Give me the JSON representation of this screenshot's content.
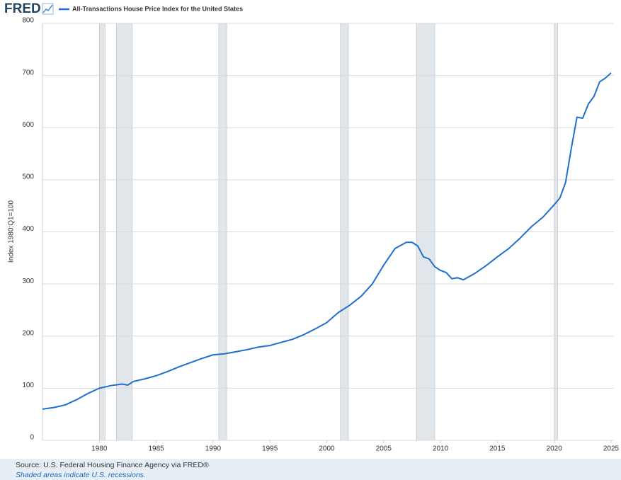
{
  "brand": "FRED",
  "chart_data": {
    "type": "line",
    "ylabel": "Index 1980:Q1=100",
    "x": [
      1975,
      1976,
      1977,
      1978,
      1979,
      1980,
      1981,
      1982,
      1982.5,
      1983,
      1984,
      1985,
      1986,
      1987,
      1988,
      1989,
      1990,
      1991,
      1992,
      1993,
      1994,
      1995,
      1996,
      1997,
      1998,
      1999,
      2000,
      2001,
      2002,
      2003,
      2004,
      2005,
      2006,
      2007,
      2007.5,
      2008,
      2008.5,
      2009,
      2009.5,
      2010,
      2010.5,
      2011,
      2011.5,
      2012,
      2012.5,
      2013,
      2014,
      2015,
      2016,
      2017,
      2018,
      2019,
      2020,
      2020.5,
      2021,
      2021.5,
      2022,
      2022.5,
      2023,
      2023.5,
      2024,
      2024.5,
      2025
    ],
    "series": [
      {
        "name": "All-Transactions House Price Index for the United States",
        "color": "#1f6fd0",
        "values": [
          60,
          63,
          68,
          78,
          90,
          100,
          105,
          108,
          106,
          113,
          118,
          124,
          132,
          141,
          149,
          157,
          164,
          166,
          170,
          174,
          179,
          182,
          188,
          194,
          203,
          214,
          226,
          245,
          259,
          276,
          300,
          336,
          368,
          380,
          380,
          373,
          352,
          348,
          333,
          326,
          322,
          310,
          312,
          308,
          314,
          320,
          335,
          352,
          368,
          388,
          410,
          428,
          452,
          465,
          495,
          560,
          620,
          618,
          645,
          660,
          688,
          695,
          705
        ]
      }
    ],
    "xlim": [
      1975,
      2025.25
    ],
    "xticks": [
      1980,
      1985,
      1990,
      1995,
      2000,
      2005,
      2010,
      2015,
      2020,
      2025
    ],
    "ylim": [
      0,
      800
    ],
    "yticks": [
      0,
      100,
      200,
      300,
      400,
      500,
      600,
      700,
      800
    ],
    "grid": true,
    "recession_color": "#e1e6eb",
    "recessions": [
      {
        "start": 1980,
        "end": 1980.5
      },
      {
        "start": 1981.5,
        "end": 1982.9
      },
      {
        "start": 1990.5,
        "end": 1991.2
      },
      {
        "start": 2001.2,
        "end": 2001.9
      },
      {
        "start": 2007.9,
        "end": 2009.5
      },
      {
        "start": 2020,
        "end": 2020.3
      }
    ]
  },
  "footer": {
    "source": "Source: U.S. Federal Housing Finance Agency via FRED®",
    "note": "Shaded areas indicate U.S. recessions."
  }
}
